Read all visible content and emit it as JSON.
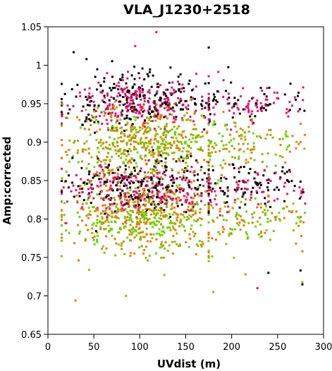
{
  "chart_data": {
    "type": "scatter",
    "title": "VLA_J1230+2518",
    "xlabel": "UVdist (m)",
    "ylabel": "Amp:corrected",
    "xlim": [
      0,
      300
    ],
    "ylim": [
      0.65,
      1.05
    ],
    "x_ticks": [
      "0",
      "50",
      "100",
      "150",
      "200",
      "250",
      "300"
    ],
    "y_ticks": [
      "0.65",
      "0.7",
      "0.75",
      "0.8",
      "0.85",
      "0.9",
      "0.95",
      "1",
      "1.05"
    ],
    "grid": false,
    "legend": "none",
    "x_range_of_points": [
      15,
      280
    ],
    "series": [
      {
        "color": "#000000",
        "bands": [
          {
            "y_center": 0.955,
            "spread": 0.018,
            "count": 260
          },
          {
            "y_center": 0.845,
            "spread": 0.018,
            "count": 280
          }
        ]
      },
      {
        "color": "#e8106a",
        "bands": [
          {
            "y_center": 0.95,
            "spread": 0.016,
            "count": 300
          },
          {
            "y_center": 0.84,
            "spread": 0.016,
            "count": 320
          }
        ]
      },
      {
        "color": "#f07800",
        "bands": [
          {
            "y_center": 0.9,
            "spread": 0.022,
            "count": 280
          },
          {
            "y_center": 0.805,
            "spread": 0.022,
            "count": 300
          }
        ]
      },
      {
        "color": "#70d000",
        "bands": [
          {
            "y_center": 0.895,
            "spread": 0.022,
            "count": 360
          },
          {
            "y_center": 0.8,
            "spread": 0.024,
            "count": 380
          }
        ]
      }
    ],
    "outliers": [
      {
        "x": 118,
        "y": 1.043,
        "color": "#e8106a"
      },
      {
        "x": 175,
        "y": 1.023,
        "color": "#000000"
      },
      {
        "x": 95,
        "y": 1.025,
        "color": "#e8106a"
      },
      {
        "x": 28,
        "y": 1.017,
        "color": "#000000"
      },
      {
        "x": 42,
        "y": 1.008,
        "color": "#000000"
      },
      {
        "x": 30,
        "y": 0.694,
        "color": "#f07800"
      },
      {
        "x": 277,
        "y": 0.715,
        "color": "#000000"
      },
      {
        "x": 277,
        "y": 0.718,
        "color": "#70d000"
      },
      {
        "x": 275,
        "y": 0.733,
        "color": "#000000"
      },
      {
        "x": 270,
        "y": 0.768,
        "color": "#f07800"
      },
      {
        "x": 277,
        "y": 0.758,
        "color": "#f07800"
      },
      {
        "x": 272,
        "y": 0.96,
        "color": "#000000"
      },
      {
        "x": 258,
        "y": 0.962,
        "color": "#000000"
      },
      {
        "x": 262,
        "y": 0.94,
        "color": "#e8106a"
      },
      {
        "x": 275,
        "y": 0.9,
        "color": "#f07800"
      },
      {
        "x": 270,
        "y": 0.892,
        "color": "#f07800"
      },
      {
        "x": 276,
        "y": 0.836,
        "color": "#e8106a"
      },
      {
        "x": 278,
        "y": 0.835,
        "color": "#000000"
      },
      {
        "x": 266,
        "y": 0.81,
        "color": "#70d000"
      },
      {
        "x": 255,
        "y": 0.862,
        "color": "#000000"
      },
      {
        "x": 258,
        "y": 0.847,
        "color": "#e8106a"
      },
      {
        "x": 252,
        "y": 0.8,
        "color": "#70d000"
      },
      {
        "x": 240,
        "y": 0.73,
        "color": "#000000"
      },
      {
        "x": 228,
        "y": 0.71,
        "color": "#e8106a"
      },
      {
        "x": 215,
        "y": 0.728,
        "color": "#f07800"
      },
      {
        "x": 180,
        "y": 0.705,
        "color": "#70d000"
      },
      {
        "x": 85,
        "y": 0.7,
        "color": "#70d000"
      },
      {
        "x": 280,
        "y": 0.82,
        "color": "#e8106a"
      }
    ]
  }
}
